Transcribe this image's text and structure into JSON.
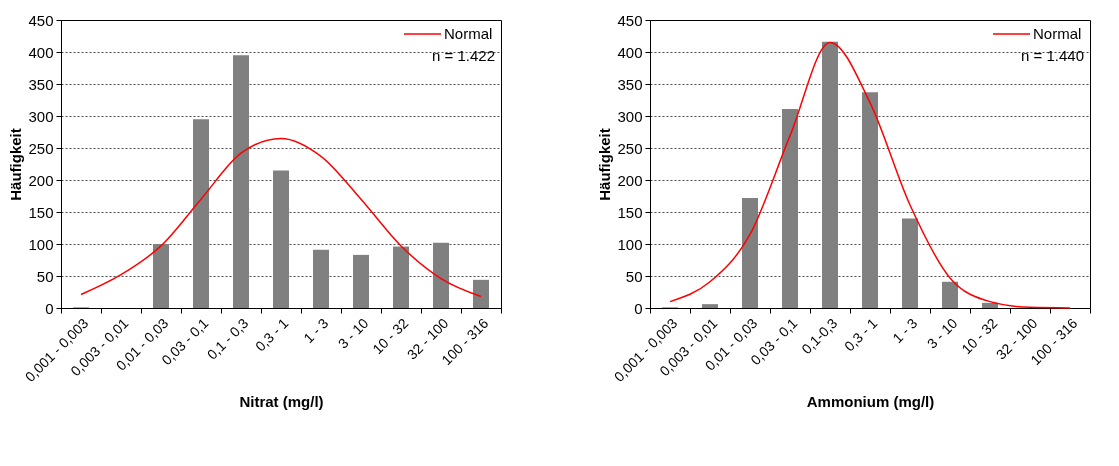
{
  "chart_data": [
    {
      "type": "bar",
      "xlabel": "Nitrat (mg/l)",
      "ylabel": "Häufigkeit",
      "categories": [
        "0,001 - 0,003",
        "0,003 - 0,01",
        "0,01 - 0,03",
        "0,03 - 0,1",
        "0,1 - 0,3",
        "0,3 - 1",
        "1 - 3",
        "3 - 10",
        "10 - 32",
        "32 - 100",
        "100 - 316"
      ],
      "series": [
        {
          "type": "bar",
          "color": "#808080",
          "values": [
            1,
            0,
            100,
            295,
            395,
            215,
            91,
            83,
            96,
            102,
            44
          ]
        },
        {
          "type": "line",
          "name": "Normal",
          "color": "#ff0000",
          "values": [
            21,
            52,
            97,
            170,
            242,
            265,
            237,
            170,
            97,
            46,
            18
          ]
        }
      ],
      "ylim": [
        0,
        450
      ],
      "yticks": [
        0,
        50,
        100,
        150,
        200,
        250,
        300,
        350,
        400,
        450
      ],
      "grid": "y",
      "legend": "top right",
      "annotations": [
        "n = 1.422"
      ]
    },
    {
      "type": "bar",
      "xlabel": "Ammonium (mg/l)",
      "ylabel": "Häufigkeit",
      "categories": [
        "0,001 - 0,003",
        "0,003 - 0,01",
        "0,01 - 0,03",
        "0,03 - 0,1",
        "0,1-0,3",
        "0,3 - 1",
        "1 - 3",
        "3 - 10",
        "10 - 32",
        "32 - 100",
        "100 - 316"
      ],
      "series": [
        {
          "type": "bar",
          "color": "#808080",
          "values": [
            1,
            6,
            172,
            311,
            416,
            337,
            140,
            41,
            8,
            0,
            0
          ]
        },
        {
          "type": "line",
          "name": "Normal",
          "color": "#ff0000",
          "values": [
            10,
            41,
            115,
            269,
            415,
            321,
            161,
            47,
            10,
            1,
            0
          ]
        }
      ],
      "ylim": [
        0,
        450
      ],
      "yticks": [
        0,
        50,
        100,
        150,
        200,
        250,
        300,
        350,
        400,
        450
      ],
      "grid": "y",
      "legend": "top right",
      "annotations": [
        "n = 1.440"
      ]
    }
  ]
}
